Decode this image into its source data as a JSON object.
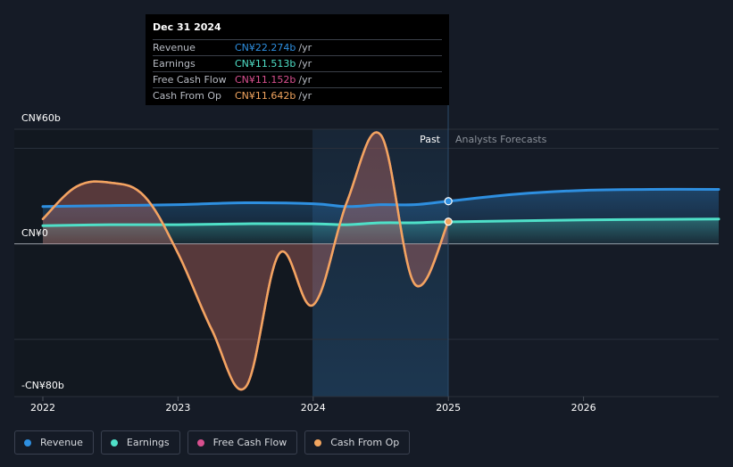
{
  "tooltip": {
    "date": "Dec 31 2024",
    "rows": [
      {
        "label": "Revenue",
        "value": "CN¥22.274b",
        "unit": "/yr",
        "color": "#2e8fe0"
      },
      {
        "label": "Earnings",
        "value": "CN¥11.513b",
        "unit": "/yr",
        "color": "#4fe0c8"
      },
      {
        "label": "Free Cash Flow",
        "value": "CN¥11.152b",
        "unit": "/yr",
        "color": "#d8508f"
      },
      {
        "label": "Cash From Op",
        "value": "CN¥11.642b",
        "unit": "/yr",
        "color": "#f2a55f"
      }
    ]
  },
  "legend": [
    {
      "label": "Revenue",
      "color": "#2e8fe0"
    },
    {
      "label": "Earnings",
      "color": "#4fe0c8"
    },
    {
      "label": "Free Cash Flow",
      "color": "#d8508f"
    },
    {
      "label": "Cash From Op",
      "color": "#f2a55f"
    }
  ],
  "chart_data": {
    "type": "line",
    "title": "",
    "xlabel": "",
    "ylabel": "",
    "y_tick_labels": [
      "CN¥60b",
      "CN¥0",
      "-CN¥80b"
    ],
    "x_tick_labels": [
      "2022",
      "2023",
      "2024",
      "2025",
      "2026"
    ],
    "ylim": [
      -80,
      60
    ],
    "xlim": [
      2022,
      2027
    ],
    "past_label": "Past",
    "forecast_label": "Analysts Forecasts",
    "past_end": 2025,
    "series": [
      {
        "name": "Revenue",
        "color": "#2e8fe0",
        "x": [
          2022,
          2022.5,
          2023,
          2023.5,
          2024,
          2024.25,
          2024.5,
          2024.75,
          2025,
          2025.5,
          2026,
          2026.5,
          2027
        ],
        "y": [
          19.5,
          20,
          20.5,
          21.5,
          21,
          19.5,
          20.5,
          20.5,
          22.3,
          26,
          28,
          28.5,
          28.5
        ]
      },
      {
        "name": "Earnings",
        "color": "#4fe0c8",
        "x": [
          2022,
          2022.5,
          2023,
          2023.5,
          2024,
          2024.25,
          2024.5,
          2024.75,
          2025,
          2026,
          2027
        ],
        "y": [
          9.5,
          10,
          10,
          10.5,
          10.5,
          10,
          11,
          11,
          11.5,
          12.5,
          13
        ]
      },
      {
        "name": "Free Cash Flow",
        "color": "#d8508f",
        "x": [
          2022,
          2022.25,
          2022.5,
          2022.75,
          2023,
          2023.25,
          2023.5,
          2023.75,
          2024,
          2024.25,
          2024.5,
          2024.75,
          2025
        ],
        "y": [
          13,
          30,
          32,
          25,
          -5,
          -45,
          -75,
          -5,
          -32,
          22,
          57,
          -21,
          11.2
        ]
      },
      {
        "name": "Cash From Op",
        "color": "#f2a55f",
        "x": [
          2022,
          2022.25,
          2022.5,
          2022.75,
          2023,
          2023.25,
          2023.5,
          2023.75,
          2024,
          2024.25,
          2024.5,
          2024.75,
          2025
        ],
        "y": [
          13,
          30,
          32,
          25,
          -5,
          -45,
          -75,
          -5,
          -32,
          22,
          57,
          -21,
          11.6
        ]
      }
    ]
  }
}
